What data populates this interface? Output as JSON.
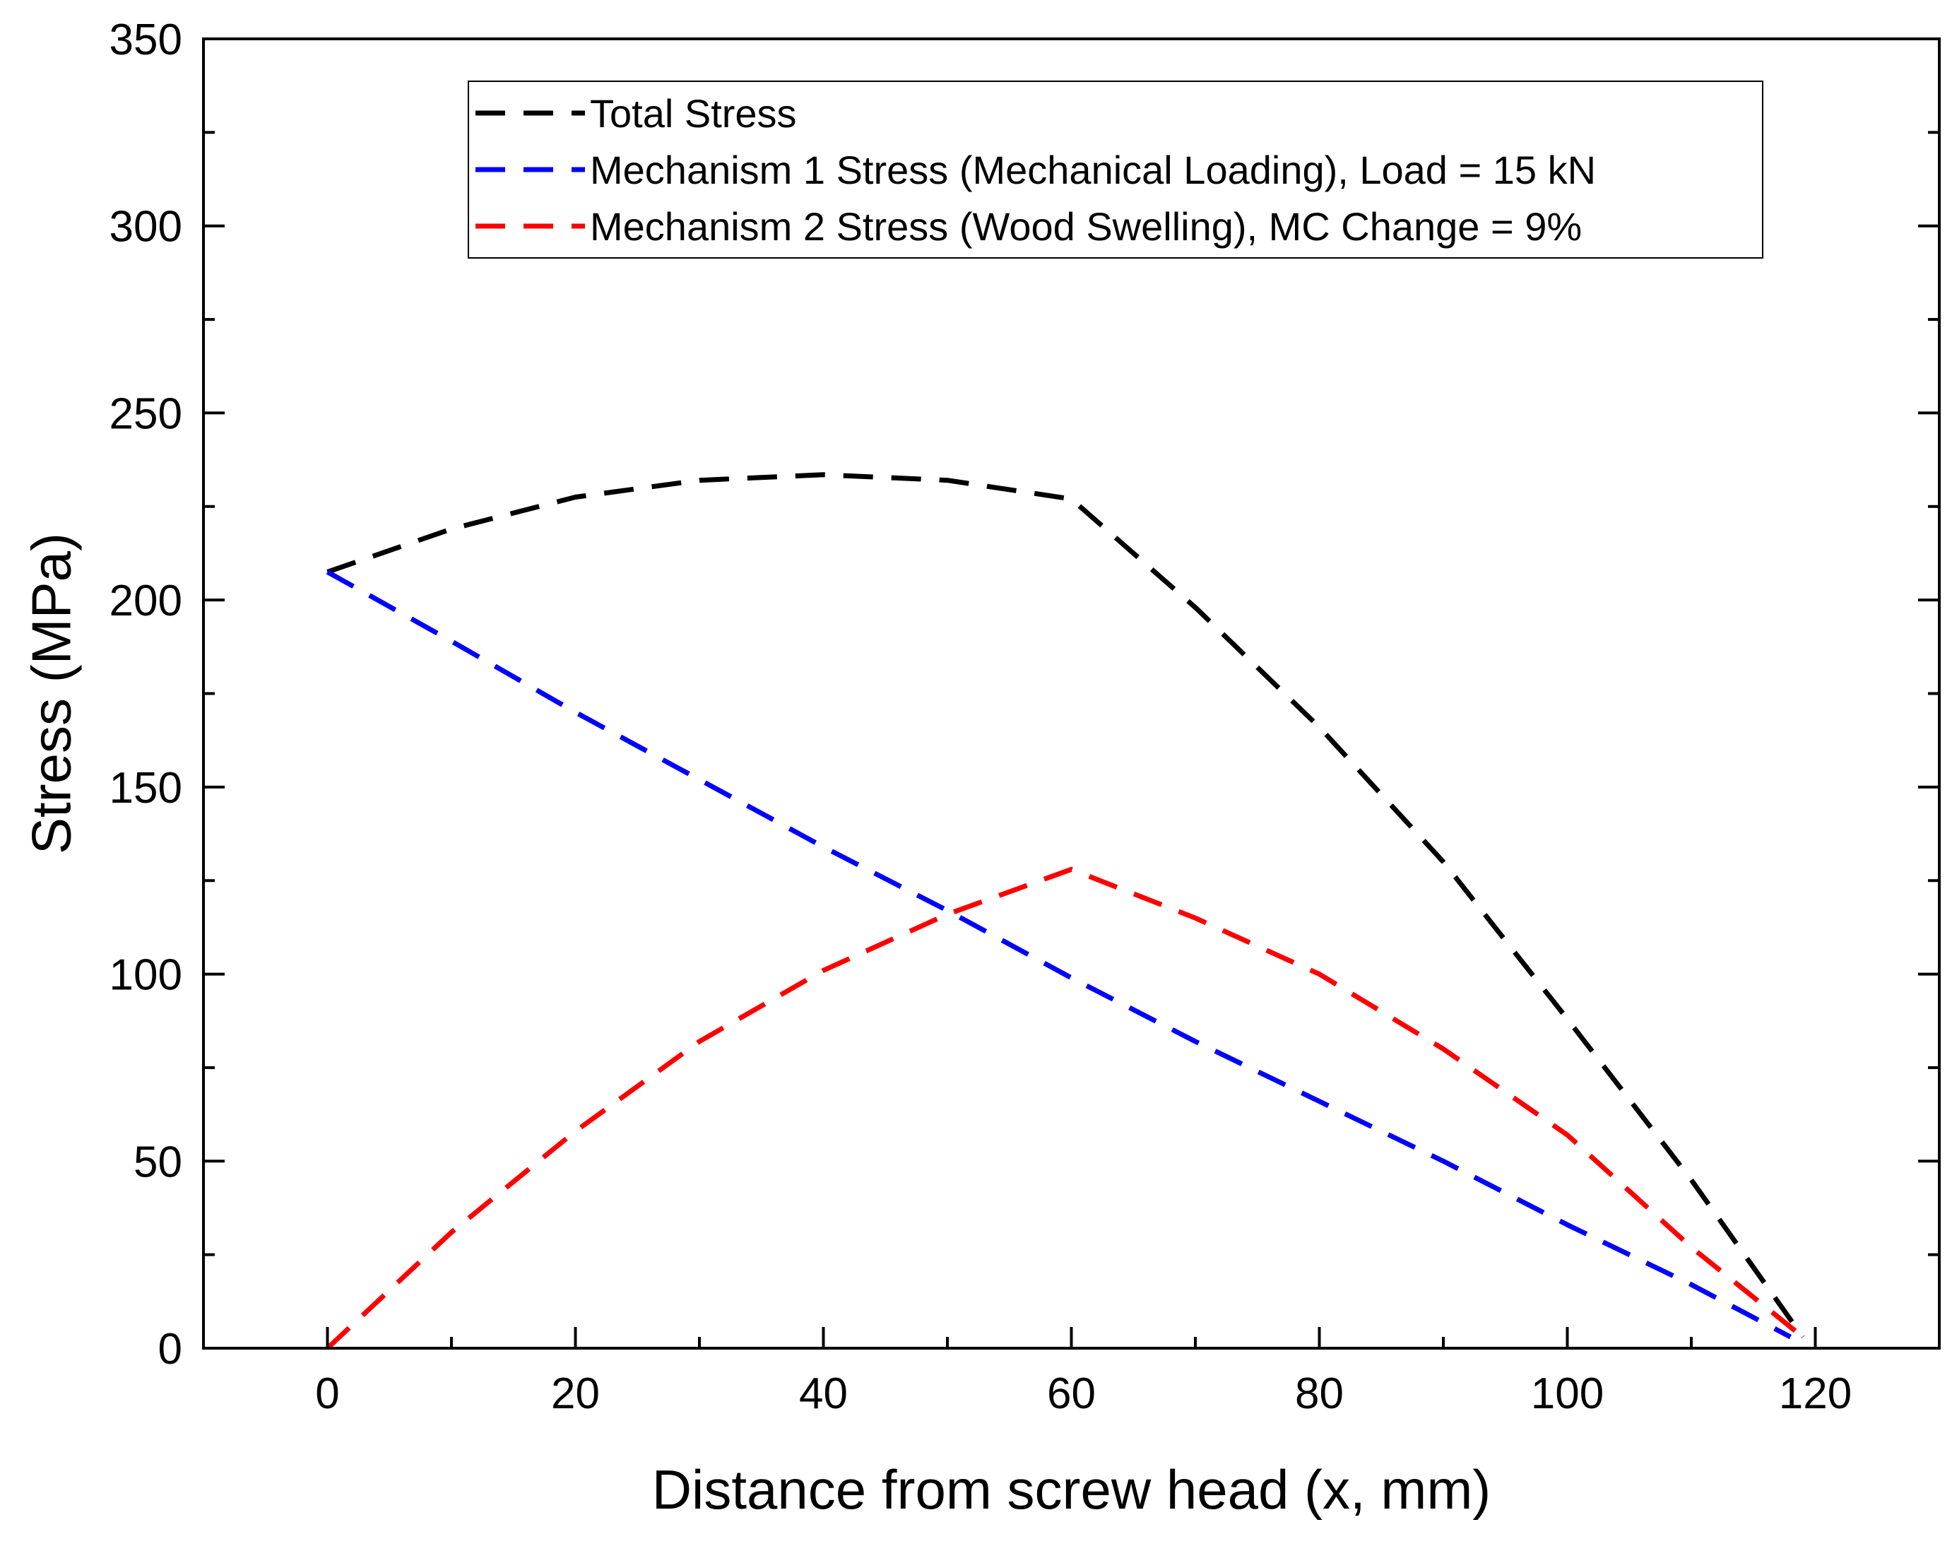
{
  "chart_data": {
    "type": "line",
    "title": "",
    "xlabel": "Distance from screw head (x, mm)",
    "ylabel": "Stress (MPa)",
    "xlim": [
      -10,
      130
    ],
    "ylim": [
      0,
      350
    ],
    "x_major_ticks": [
      0,
      20,
      40,
      60,
      80,
      100,
      120
    ],
    "y_major_ticks": [
      0,
      50,
      100,
      150,
      200,
      250,
      300,
      350
    ],
    "x_tick_labels": [
      "0",
      "20",
      "40",
      "60",
      "80",
      "100",
      "120"
    ],
    "y_tick_labels": [
      "0",
      "50",
      "100",
      "150",
      "200",
      "250",
      "300",
      "350"
    ],
    "grid": false,
    "legend_position": "top-center",
    "series": [
      {
        "name": "Total Stress",
        "color": "#000000",
        "style": "dashed",
        "x": [
          0,
          10,
          20,
          30,
          40,
          50,
          60,
          70,
          80,
          90,
          100,
          110,
          119
        ],
        "values": [
          207.5,
          219,
          227.5,
          232,
          233.5,
          232,
          227,
          198,
          166,
          130,
          88,
          45,
          3
        ]
      },
      {
        "name": "Mechanism 1 Stress (Mechanical Loading), Load = 15 kN",
        "color": "#0000ff",
        "style": "dashed",
        "x": [
          0,
          10,
          20,
          30,
          40,
          50,
          60,
          70,
          80,
          90,
          100,
          110,
          118
        ],
        "values": [
          207.5,
          189,
          170,
          152,
          134,
          117,
          99,
          82,
          66,
          50,
          33,
          17,
          3
        ]
      },
      {
        "name": "Mechanism 2 Stress (Wood Swelling), MC Change = 9%",
        "color": "#ff0000",
        "style": "dashed",
        "x": [
          0,
          10,
          20,
          30,
          40,
          50,
          60,
          70,
          80,
          90,
          100,
          110,
          119
        ],
        "values": [
          0,
          31,
          58,
          82,
          101,
          116,
          128,
          115,
          100,
          80,
          57,
          27,
          3
        ]
      }
    ]
  }
}
